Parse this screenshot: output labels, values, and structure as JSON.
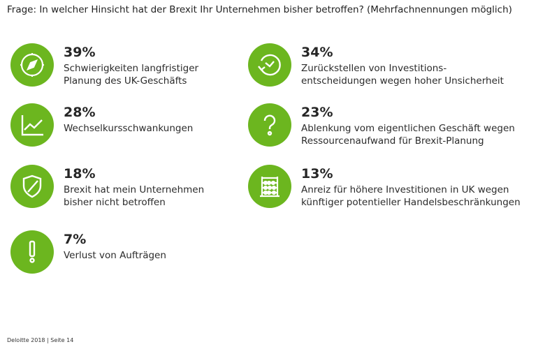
{
  "question": "Frage: In welcher Hinsicht hat der Brexit Ihr Unternehmen bisher betroffen? (Mehrfachnennungen möglich)",
  "accent_color": "#6cb61f",
  "items": [
    {
      "icon": "compass-icon",
      "percent": "39%",
      "line1": "Schwierigkeiten langfristiger",
      "line2": "Planung des UK-Geschäfts"
    },
    {
      "icon": "clock-arrow-icon",
      "percent": "34%",
      "line1": "Zurückstellen von Investitions-",
      "line2": "entscheidungen wegen hoher Unsicherheit"
    },
    {
      "icon": "line-chart-icon",
      "percent": "28%",
      "line1": "Wechselkursschwankungen",
      "line2": ""
    },
    {
      "icon": "question-mark-icon",
      "percent": "23%",
      "line1": "Ablenkung vom eigentlichen Geschäft wegen",
      "line2": "Ressourcenaufwand für Brexit-Planung"
    },
    {
      "icon": "shield-icon",
      "percent": "18%",
      "line1": "Brexit hat mein Unternehmen",
      "line2": "bisher nicht betroffen"
    },
    {
      "icon": "abacus-icon",
      "percent": "13%",
      "line1": "Anreiz für höhere Investitionen in UK wegen",
      "line2": "künftiger potentieller Handelsbeschränkungen"
    },
    {
      "icon": "exclamation-icon",
      "percent": "7%",
      "line1": "Verlust von Aufträgen",
      "line2": ""
    }
  ],
  "footer": "Deloitte 2018 | Seite 14"
}
